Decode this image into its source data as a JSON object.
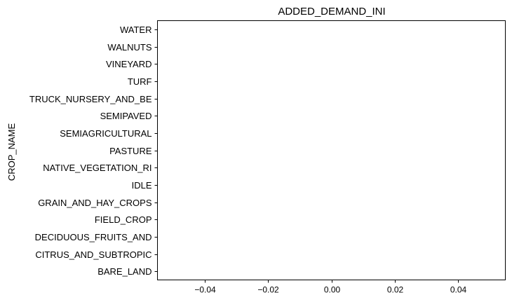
{
  "chart_data": {
    "type": "bar",
    "orientation": "horizontal",
    "title": "ADDED_DEMAND_INI",
    "xlabel": "",
    "ylabel": "CROP_NAME",
    "categories": [
      "WATER",
      "WALNUTS",
      "VINEYARD",
      "TURF",
      "TRUCK_NURSERY_AND_BE",
      "SEMIPAVED",
      "SEMIAGRICULTURAL",
      "PASTURE",
      "NATIVE_VEGETATION_RI",
      "IDLE",
      "GRAIN_AND_HAY_CROPS",
      "FIELD_CROP",
      "DECIDUOUS_FRUITS_AND",
      "CITRUS_AND_SUBTROPIC",
      "BARE_LAND"
    ],
    "values": [
      0,
      0,
      0,
      0,
      0,
      0,
      0,
      0,
      0,
      0,
      0,
      0,
      0,
      0,
      0
    ],
    "xlim": [
      -0.055,
      0.055
    ],
    "xticks": [
      -0.04,
      -0.02,
      0.0,
      0.02,
      0.04
    ],
    "xtick_labels": [
      "−0.04",
      "−0.02",
      "0.00",
      "0.02",
      "0.04"
    ],
    "grid": false,
    "legend": "none",
    "colors": {
      "axes": "#000000",
      "background": "#ffffff"
    }
  }
}
